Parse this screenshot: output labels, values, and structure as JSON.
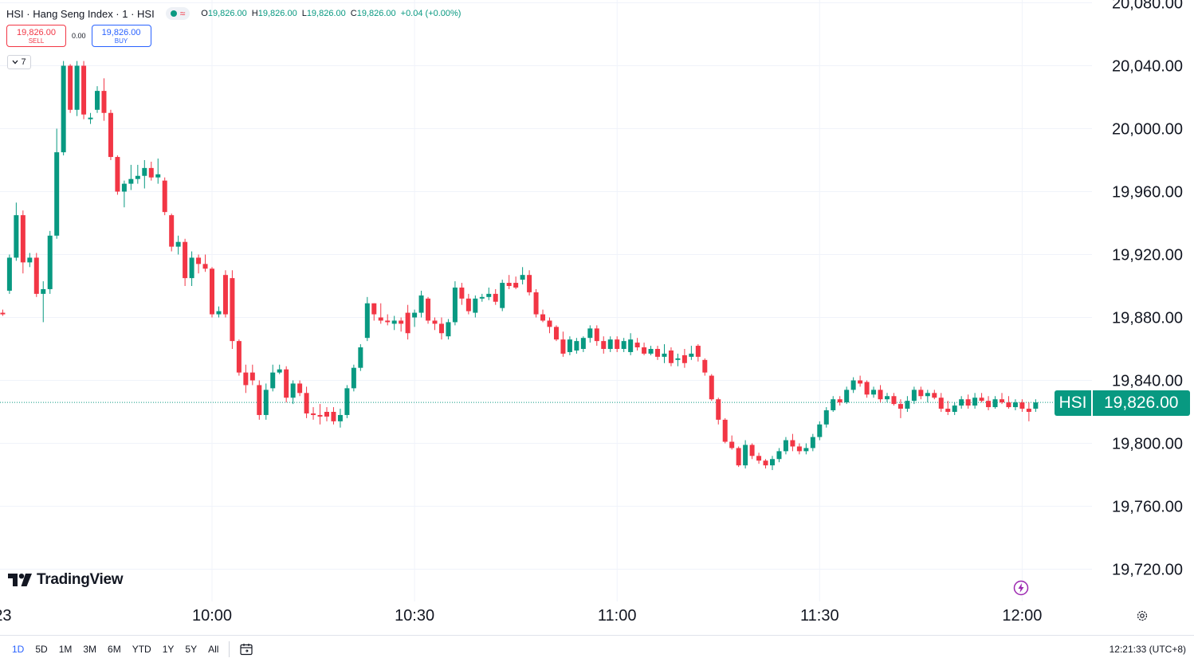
{
  "header": {
    "symbol_title": "HSI · Hang Seng Index · 1 · HSI",
    "market_indicator": "≈",
    "ohlc": {
      "o_label": "O",
      "o_value": "19,826.00",
      "h_label": "H",
      "h_value": "19,826.00",
      "l_label": "L",
      "l_value": "19,826.00",
      "c_label": "C",
      "c_value": "19,826.00",
      "change": "+0.04 (+0.00%)"
    }
  },
  "trade": {
    "sell_price": "19,826.00",
    "sell_label": "SELL",
    "spread": "0.00",
    "buy_price": "19,826.00",
    "buy_label": "BUY"
  },
  "indicators_toggle": {
    "count": "7"
  },
  "logo": {
    "text": "TradingView"
  },
  "price_tag": {
    "symbol": "HSI",
    "value": "19,826.00"
  },
  "bottom": {
    "ranges": [
      "1D",
      "5D",
      "1M",
      "3M",
      "6M",
      "YTD",
      "1Y",
      "5Y",
      "All"
    ],
    "active_range": "1D",
    "clock": "12:21:33 (UTC+8)"
  },
  "colors": {
    "up": "#089981",
    "down": "#f23645",
    "grid": "#f0f3fa"
  },
  "chart_data": {
    "type": "candlestick",
    "last_price": 19826,
    "y_ticks": [
      "20,080.00",
      "20,040.00",
      "20,000.00",
      "19,960.00",
      "19,920.00",
      "19,880.00",
      "19,840.00",
      "19,800.00",
      "19,760.00",
      "19,720.00"
    ],
    "y_tick_values": [
      20080,
      20040,
      20000,
      19960,
      19920,
      19880,
      19840,
      19800,
      19760,
      19720
    ],
    "x_ticks": [
      "23",
      "10:00",
      "10:30",
      "11:00",
      "11:30",
      "12:00"
    ],
    "x_tick_minutes": [
      -31,
      0,
      30,
      60,
      90,
      120
    ],
    "candles": [
      [
        -31,
        19883,
        19885,
        19881,
        19882
      ],
      [
        -30,
        19897,
        19920,
        19895,
        19918
      ],
      [
        -29,
        19918,
        19953,
        19916,
        19945
      ],
      [
        -28,
        19945,
        19948,
        19908,
        19915
      ],
      [
        -27,
        19915,
        19921,
        19912,
        19918
      ],
      [
        -26,
        19918,
        19921,
        19893,
        19895
      ],
      [
        -25,
        19895,
        19903,
        19877,
        19898
      ],
      [
        -24,
        19898,
        19935,
        19895,
        19932
      ],
      [
        -23,
        19932,
        20000,
        19930,
        19985
      ],
      [
        -22,
        19985,
        20043,
        19983,
        20040
      ],
      [
        -21,
        20040,
        20041,
        20010,
        20012
      ],
      [
        -20,
        20012,
        20043,
        20008,
        20040
      ],
      [
        -19,
        20040,
        20043,
        20006,
        20009
      ],
      [
        -18,
        20006,
        20010,
        20003,
        20007
      ],
      [
        -17,
        20012,
        20027,
        20010,
        20024
      ],
      [
        -16,
        20024,
        20032,
        20005,
        20010
      ],
      [
        -15,
        20010,
        20012,
        19980,
        19982
      ],
      [
        -14,
        19982,
        19983,
        19958,
        19960
      ],
      [
        -13,
        19960,
        19967,
        19950,
        19965
      ],
      [
        -12,
        19965,
        19977,
        19961,
        19968
      ],
      [
        -11,
        19968,
        19977,
        19965,
        19970
      ],
      [
        -10,
        19970,
        19980,
        19962,
        19975
      ],
      [
        -9,
        19975,
        19979,
        19967,
        19969
      ],
      [
        -8,
        19969,
        19981,
        19965,
        19971
      ],
      [
        -7,
        19967,
        19969,
        19945,
        19947
      ],
      [
        -6,
        19945,
        19946,
        19922,
        19925
      ],
      [
        -5,
        19925,
        19932,
        19920,
        19928
      ],
      [
        -4,
        19928,
        19930,
        19900,
        19905
      ],
      [
        -3,
        19905,
        19922,
        19900,
        19918
      ],
      [
        -2,
        19918,
        19920,
        19908,
        19914
      ],
      [
        -1,
        19914,
        19920,
        19909,
        19911
      ],
      [
        0,
        19911,
        19912,
        19880,
        19882
      ],
      [
        1,
        19882,
        19887,
        19880,
        19884
      ],
      [
        2,
        19907,
        19910,
        19880,
        19882
      ],
      [
        3,
        19905,
        19910,
        19860,
        19865
      ],
      [
        4,
        19865,
        19866,
        19843,
        19845
      ],
      [
        5,
        19845,
        19850,
        19832,
        19837
      ],
      [
        6,
        19845,
        19850,
        19837,
        19840
      ],
      [
        7,
        19837,
        19840,
        19815,
        19818
      ],
      [
        8,
        19818,
        19838,
        19815,
        19834
      ],
      [
        9,
        19835,
        19850,
        19833,
        19845
      ],
      [
        10,
        19845,
        19850,
        19844,
        19847
      ],
      [
        11,
        19847,
        19849,
        19826,
        19829
      ],
      [
        12,
        19829,
        19840,
        19825,
        19838
      ],
      [
        13,
        19838,
        19840,
        19830,
        19832
      ],
      [
        14,
        19832,
        19836,
        19816,
        19819
      ],
      [
        15,
        19819,
        19823,
        19815,
        19818
      ],
      [
        16,
        19818,
        19825,
        19812,
        19817
      ],
      [
        17,
        19820,
        19823,
        19814,
        19817
      ],
      [
        18,
        19820,
        19823,
        19812,
        19814
      ],
      [
        19,
        19814,
        19822,
        19810,
        19818
      ],
      [
        20,
        19818,
        19837,
        19816,
        19835
      ],
      [
        21,
        19835,
        19850,
        19833,
        19848
      ],
      [
        22,
        19848,
        19863,
        19846,
        19861
      ],
      [
        23,
        19867,
        19893,
        19865,
        19889
      ],
      [
        24,
        19889,
        19889,
        19878,
        19882
      ],
      [
        25,
        19880,
        19889,
        19876,
        19878
      ],
      [
        26,
        19878,
        19882,
        19875,
        19877
      ],
      [
        27,
        19876,
        19881,
        19872,
        19878
      ],
      [
        28,
        19878,
        19880,
        19871,
        19876
      ],
      [
        29,
        19883,
        19888,
        19866,
        19870
      ],
      [
        30,
        19880,
        19885,
        19874,
        19883
      ],
      [
        31,
        19883,
        19897,
        19880,
        19894
      ],
      [
        32,
        19892,
        19893,
        19876,
        19878
      ],
      [
        33,
        19878,
        19880,
        19872,
        19876
      ],
      [
        34,
        19876,
        19880,
        19866,
        19870
      ],
      [
        35,
        19868,
        19879,
        19866,
        19877
      ],
      [
        36,
        19877,
        19903,
        19875,
        19899
      ],
      [
        37,
        19899,
        19902,
        19888,
        19892
      ],
      [
        38,
        19892,
        19895,
        19882,
        19884
      ],
      [
        39,
        19883,
        19894,
        19880,
        19892
      ],
      [
        40,
        19892,
        19895,
        19890,
        19893
      ],
      [
        41,
        19893,
        19899,
        19891,
        19895
      ],
      [
        42,
        19895,
        19898,
        19888,
        19890
      ],
      [
        43,
        19886,
        19904,
        19884,
        19902
      ],
      [
        44,
        19902,
        19907,
        19898,
        19900
      ],
      [
        45,
        19902,
        19906,
        19898,
        19899
      ],
      [
        46,
        19904,
        19912,
        19901,
        19907
      ],
      [
        47,
        19907,
        19910,
        19894,
        19896
      ],
      [
        48,
        19896,
        19898,
        19880,
        19882
      ],
      [
        49,
        19882,
        19885,
        19877,
        19878
      ],
      [
        50,
        19878,
        19880,
        19870,
        19874
      ],
      [
        51,
        19874,
        19875,
        19865,
        19866
      ],
      [
        52,
        19866,
        19871,
        19855,
        19857
      ],
      [
        53,
        19858,
        19868,
        19856,
        19866
      ],
      [
        54,
        19859,
        19867,
        19857,
        19865
      ],
      [
        55,
        19860,
        19868,
        19858,
        19867
      ],
      [
        56,
        19867,
        19875,
        19864,
        19873
      ],
      [
        57,
        19873,
        19875,
        19862,
        19865
      ],
      [
        58,
        19865,
        19868,
        19857,
        19860
      ],
      [
        59,
        19860,
        19868,
        19858,
        19866
      ],
      [
        60,
        19866,
        19868,
        19858,
        19860
      ],
      [
        61,
        19860,
        19867,
        19858,
        19865
      ],
      [
        62,
        19858,
        19870,
        19856,
        19866
      ],
      [
        63,
        19864,
        19867,
        19859,
        19861
      ],
      [
        64,
        19861,
        19864,
        19856,
        19857
      ],
      [
        65,
        19857,
        19862,
        19856,
        19860
      ],
      [
        66,
        19860,
        19862,
        19853,
        19855
      ],
      [
        67,
        19855,
        19863,
        19851,
        19857
      ],
      [
        68,
        19859,
        19861,
        19849,
        19851
      ],
      [
        69,
        19853,
        19857,
        19849,
        19854
      ],
      [
        70,
        19856,
        19860,
        19848,
        19851
      ],
      [
        71,
        19855,
        19862,
        19853,
        19857
      ],
      [
        72,
        19862,
        19863,
        19852,
        19855
      ],
      [
        73,
        19853,
        19854,
        19843,
        19845
      ],
      [
        74,
        19843,
        19844,
        19827,
        19828
      ],
      [
        75,
        19828,
        19829,
        19812,
        19815
      ],
      [
        76,
        19815,
        19816,
        19800,
        19801
      ],
      [
        77,
        19801,
        19805,
        19796,
        19797
      ],
      [
        78,
        19797,
        19798,
        19785,
        19786
      ],
      [
        79,
        19786,
        19802,
        19784,
        19799
      ],
      [
        80,
        19799,
        19800,
        19790,
        19792
      ],
      [
        81,
        19792,
        19794,
        19787,
        19789
      ],
      [
        82,
        19789,
        19790,
        19784,
        19786
      ],
      [
        83,
        19786,
        19792,
        19783,
        19790
      ],
      [
        84,
        19790,
        19797,
        19788,
        19795
      ],
      [
        85,
        19795,
        19804,
        19793,
        19802
      ],
      [
        86,
        19802,
        19806,
        19795,
        19798
      ],
      [
        87,
        19798,
        19800,
        19793,
        19795
      ],
      [
        88,
        19795,
        19800,
        19793,
        19797
      ],
      [
        89,
        19797,
        19806,
        19795,
        19804
      ],
      [
        90,
        19804,
        19814,
        19802,
        19812
      ],
      [
        91,
        19812,
        19823,
        19810,
        19821
      ],
      [
        92,
        19821,
        19830,
        19820,
        19828
      ],
      [
        93,
        19828,
        19830,
        19824,
        19826
      ],
      [
        94,
        19826,
        19836,
        19825,
        19834
      ],
      [
        95,
        19834,
        19842,
        19832,
        19840
      ],
      [
        96,
        19840,
        19843,
        19836,
        19838
      ],
      [
        97,
        19839,
        19840,
        19829,
        19831
      ],
      [
        98,
        19831,
        19836,
        19829,
        19834
      ],
      [
        99,
        19834,
        19837,
        19826,
        19828
      ],
      [
        100,
        19828,
        19832,
        19826,
        19830
      ],
      [
        101,
        19830,
        19832,
        19824,
        19825
      ],
      [
        102,
        19825,
        19828,
        19816,
        19822
      ],
      [
        103,
        19822,
        19830,
        19820,
        19827
      ],
      [
        104,
        19827,
        19836,
        19825,
        19834
      ],
      [
        105,
        19834,
        19836,
        19828,
        19830
      ],
      [
        106,
        19830,
        19834,
        19826,
        19832
      ],
      [
        107,
        19832,
        19834,
        19828,
        19829
      ],
      [
        108,
        19829,
        19832,
        19820,
        19822
      ],
      [
        109,
        19822,
        19827,
        19818,
        19820
      ],
      [
        110,
        19820,
        19826,
        19818,
        19824
      ],
      [
        111,
        19824,
        19830,
        19822,
        19828
      ],
      [
        112,
        19828,
        19831,
        19822,
        19824
      ],
      [
        113,
        19824,
        19832,
        19822,
        19829
      ],
      [
        114,
        19829,
        19832,
        19826,
        19827
      ],
      [
        115,
        19827,
        19830,
        19821,
        19823
      ],
      [
        116,
        19823,
        19830,
        19822,
        19828
      ],
      [
        117,
        19828,
        19832,
        19825,
        19826
      ],
      [
        118,
        19826,
        19830,
        19822,
        19823
      ],
      [
        119,
        19823,
        19828,
        19821,
        19826
      ],
      [
        120,
        19826,
        19828,
        19820,
        19822
      ],
      [
        121,
        19822,
        19826,
        19814,
        19820
      ],
      [
        122,
        19822,
        19828,
        19820,
        19826
      ]
    ]
  }
}
